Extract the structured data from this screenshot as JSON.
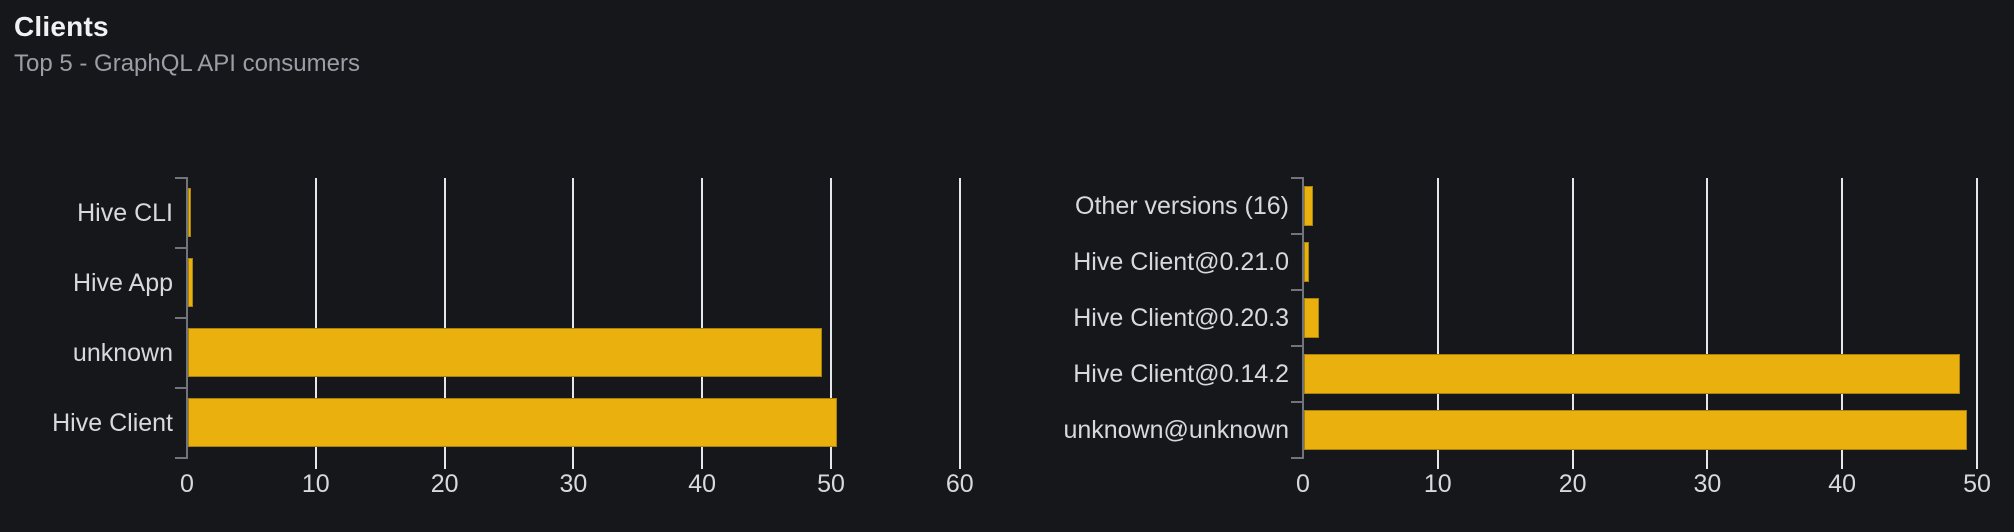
{
  "header": {
    "title": "Clients",
    "subtitle": "Top 5 - GraphQL API consumers"
  },
  "colors": {
    "background": "#15171b",
    "bar_fill": "#EAB10E",
    "bar_border": "#A9820B",
    "gridline": "#E5E7EE",
    "axis": "#71747B",
    "title_text": "#F0F1F3",
    "subtitle_text": "#9B9EA4",
    "label_text": "#D8D9DC"
  },
  "chart_data": [
    {
      "type": "bar",
      "orientation": "horizontal",
      "title": "",
      "categories": [
        "Hive CLI",
        "Hive App",
        "unknown",
        "Hive Client"
      ],
      "values": [
        0.2,
        0.4,
        49.2,
        50.4
      ],
      "xlabel": "",
      "ylabel": "",
      "xlim": [
        0,
        60
      ],
      "xticks": [
        0,
        10,
        20,
        30,
        40,
        50,
        60
      ],
      "grid": "vertical-on",
      "legend": "none"
    },
    {
      "type": "bar",
      "orientation": "horizontal",
      "title": "",
      "categories": [
        "Other versions (16)",
        "Hive Client@0.21.0",
        "Hive Client@0.20.3",
        "Hive Client@0.14.2",
        "unknown@unknown"
      ],
      "values": [
        0.7,
        0.4,
        1.1,
        48.7,
        49.2
      ],
      "xlabel": "",
      "ylabel": "",
      "xlim": [
        0,
        50
      ],
      "xticks": [
        0,
        10,
        20,
        30,
        40,
        50
      ],
      "grid": "vertical-on",
      "legend": "none"
    }
  ]
}
